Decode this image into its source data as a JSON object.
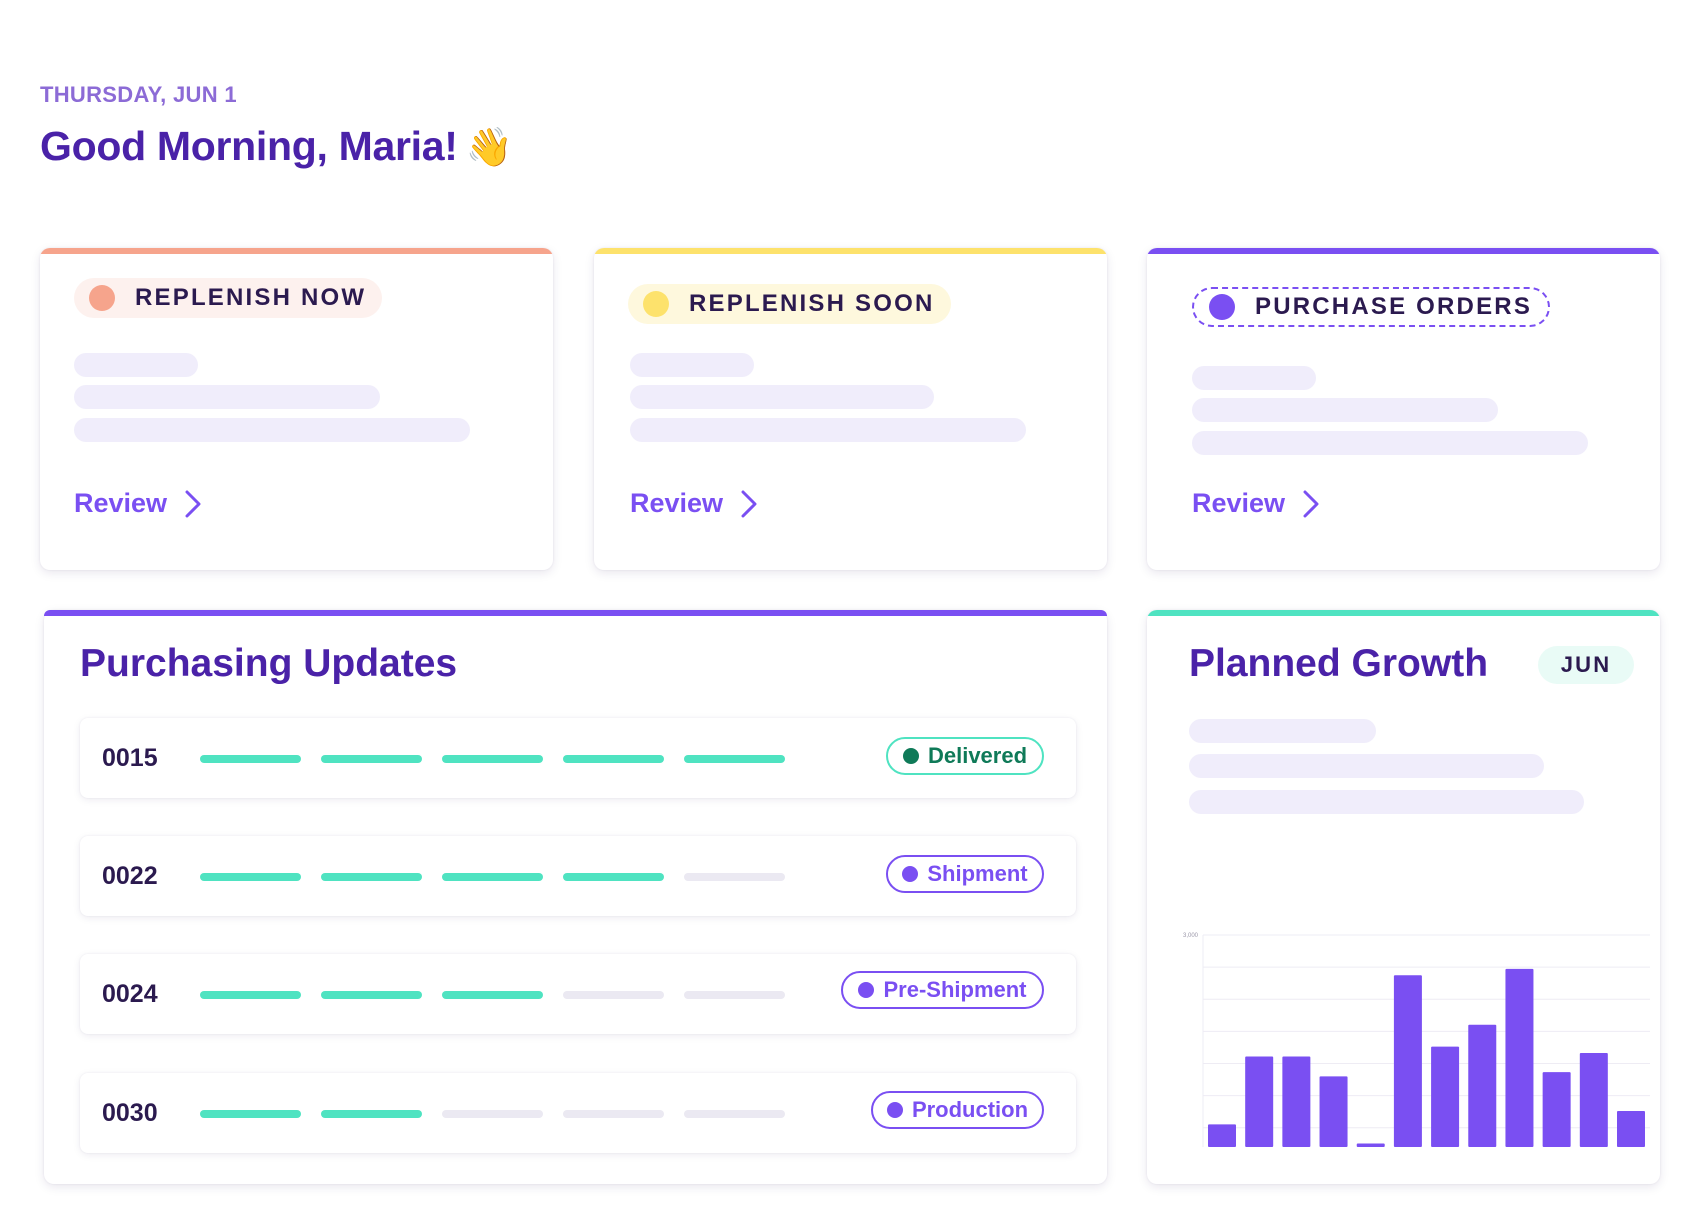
{
  "header": {
    "date": "THURSDAY, JUN 1",
    "greeting": "Good Morning, Maria!",
    "wave_emoji": "👋"
  },
  "cards": [
    {
      "label": "REPLENISH NOW",
      "accent": "#f6a48c",
      "dot_color": "#f6a48c",
      "pill_bg": "#fdf1ee",
      "action": "Review"
    },
    {
      "label": "REPLENISH SOON",
      "accent": "#fde26c",
      "dot_color": "#fde26c",
      "pill_bg": "#fef8dd",
      "action": "Review"
    },
    {
      "label": "PURCHASE ORDERS",
      "accent": "#7a4ff2",
      "dot_color": "#7a4ff2",
      "pill_bg": "#ffffff",
      "action": "Review"
    }
  ],
  "purchasing_updates": {
    "title": "Purchasing Updates",
    "accent": "#7a4ff2",
    "rows": [
      {
        "id": "0015",
        "progress": 5,
        "steps": 5,
        "status": "Delivered",
        "status_color": "#0f7a58",
        "status_border": "#4fe3c1"
      },
      {
        "id": "0022",
        "progress": 4,
        "steps": 5,
        "status": "Shipment",
        "status_color": "#7a4ff2",
        "status_border": "#7a4ff2"
      },
      {
        "id": "0024",
        "progress": 3,
        "steps": 5,
        "status": "Pre-Shipment",
        "status_color": "#7a4ff2",
        "status_border": "#7a4ff2"
      },
      {
        "id": "0030",
        "progress": 2,
        "steps": 5,
        "status": "Production",
        "status_color": "#7a4ff2",
        "status_border": "#7a4ff2"
      }
    ]
  },
  "planned_growth": {
    "title": "Planned Growth",
    "month": "JUN",
    "accent": "#4fe3c1"
  },
  "chart_data": {
    "type": "bar",
    "title": "",
    "ylim": [
      0,
      3000
    ],
    "y_ticks": [
      "3,000"
    ],
    "grid": true,
    "bar_color": "#7a4ff2",
    "values": [
      320,
      1280,
      1280,
      1000,
      50,
      2430,
      1420,
      1730,
      2520,
      1060,
      1330,
      510
    ]
  }
}
